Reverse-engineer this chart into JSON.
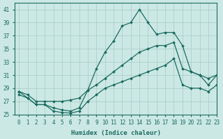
{
  "xlabel": "Humidex (Indice chaleur)",
  "ylabel": "",
  "background_color": "#cce8e4",
  "grid_color": "#aacfca",
  "line_color": "#1a6b60",
  "xlim": [
    -0.5,
    23
  ],
  "ylim": [
    25,
    42
  ],
  "xticks": [
    0,
    1,
    2,
    3,
    4,
    5,
    6,
    7,
    8,
    9,
    10,
    11,
    12,
    13,
    14,
    15,
    16,
    17,
    18,
    19,
    20,
    21,
    22,
    23
  ],
  "yticks": [
    25,
    27,
    29,
    31,
    33,
    35,
    37,
    39,
    41
  ],
  "line1_x": [
    0,
    1,
    2,
    3,
    4,
    5,
    6,
    7,
    8,
    9,
    10,
    11,
    12,
    13,
    14,
    15,
    16,
    17,
    18,
    19,
    20,
    21,
    22,
    23
  ],
  "line1_y": [
    28.0,
    27.5,
    26.5,
    26.5,
    26.0,
    25.7,
    25.5,
    26.0,
    28.7,
    32.0,
    34.5,
    36.2,
    38.5,
    39.0,
    41.0,
    39.0,
    37.2,
    37.5,
    37.5,
    35.5,
    31.5,
    31.0,
    29.5,
    31.0
  ],
  "line2_x": [
    0,
    1,
    2,
    3,
    4,
    5,
    6,
    7,
    8,
    9,
    10,
    11,
    12,
    13,
    14,
    15,
    16,
    17,
    18,
    19,
    20,
    21,
    22,
    23
  ],
  "line2_y": [
    28.5,
    28.0,
    27.0,
    27.0,
    27.0,
    27.0,
    27.2,
    27.5,
    28.7,
    29.5,
    30.5,
    31.5,
    32.5,
    33.5,
    34.5,
    35.0,
    35.5,
    35.5,
    36.0,
    32.0,
    31.5,
    31.0,
    30.5,
    31.0
  ],
  "line3_x": [
    0,
    1,
    2,
    3,
    4,
    5,
    6,
    7,
    8,
    9,
    10,
    11,
    12,
    13,
    14,
    15,
    16,
    17,
    18,
    19,
    20,
    21,
    22,
    23
  ],
  "line3_y": [
    28.5,
    27.5,
    26.5,
    26.5,
    25.5,
    25.3,
    25.2,
    25.5,
    27.0,
    28.0,
    29.0,
    29.5,
    30.0,
    30.5,
    31.0,
    31.5,
    32.0,
    32.5,
    33.5,
    29.5,
    29.0,
    29.0,
    28.5,
    29.5
  ]
}
